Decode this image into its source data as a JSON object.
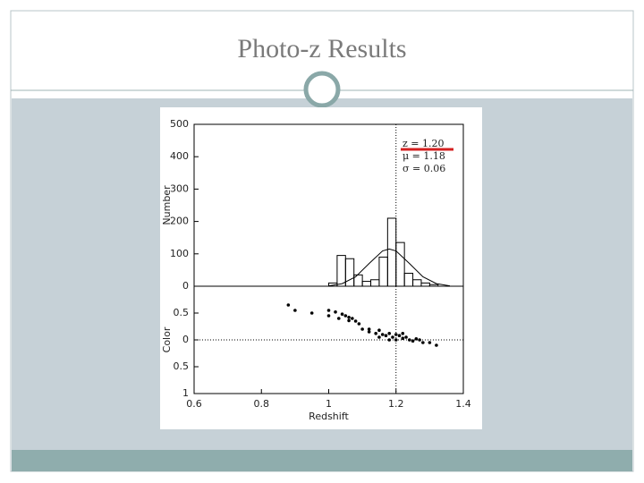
{
  "slide": {
    "title": "Photo-z Results"
  },
  "chart_data": [
    {
      "type": "histogram",
      "ylabel": "Number",
      "annotations": [
        "z = 1.20",
        "μ = 1.18",
        "σ = 0.06"
      ],
      "bins": [
        1.0,
        1.025,
        1.05,
        1.075,
        1.1,
        1.125,
        1.15,
        1.175,
        1.2,
        1.225,
        1.25,
        1.275,
        1.3,
        1.325
      ],
      "values": [
        10,
        95,
        85,
        35,
        15,
        20,
        90,
        210,
        135,
        40,
        20,
        10,
        5
      ],
      "fit": {
        "x": [
          1.0,
          1.04,
          1.08,
          1.12,
          1.16,
          1.18,
          1.2,
          1.24,
          1.28,
          1.32,
          1.36
        ],
        "values": [
          1,
          8,
          29,
          70,
          109,
          115,
          109,
          70,
          29,
          8,
          1
        ]
      },
      "vline": 1.2,
      "color": "#000000",
      "xlim": [
        0.6,
        1.4
      ],
      "ylim": [
        0,
        500
      ],
      "yticks": [
        0,
        100,
        200,
        300,
        400,
        500
      ]
    },
    {
      "type": "scatter",
      "xlabel": "Redshift",
      "ylabel": "Color",
      "x": [
        0.88,
        0.9,
        0.95,
        1.0,
        1.02,
        1.04,
        1.05,
        1.06,
        1.07,
        1.08,
        1.09,
        1.1,
        1.12,
        1.14,
        1.15,
        1.16,
        1.17,
        1.18,
        1.19,
        1.2,
        1.21,
        1.22,
        1.23,
        1.24,
        1.25,
        1.26,
        1.27,
        1.28,
        1.3,
        1.32,
        1.0,
        1.03,
        1.06,
        1.12,
        1.18,
        1.2,
        1.22,
        1.15
      ],
      "values": [
        0.65,
        0.55,
        0.5,
        0.55,
        0.52,
        0.48,
        0.45,
        0.42,
        0.4,
        0.35,
        0.3,
        0.2,
        0.15,
        0.12,
        0.18,
        0.1,
        0.08,
        0.12,
        0.05,
        0.1,
        0.08,
        0.03,
        0.05,
        0.0,
        -0.02,
        0.02,
        0.0,
        -0.05,
        -0.05,
        -0.1,
        0.45,
        0.4,
        0.36,
        0.2,
        0.0,
        0.0,
        0.12,
        0.05
      ],
      "hline": 0,
      "vline": 1.2,
      "color": "#000000",
      "xlim": [
        0.6,
        1.4
      ],
      "ylim": [
        -1,
        1
      ],
      "xticks": [
        0.6,
        0.8,
        1,
        1.2,
        1.4
      ],
      "yticks": [
        0.5,
        0,
        {
          "value": -0.5,
          "label": "0.5"
        },
        {
          "value": -1,
          "label": "1"
        }
      ]
    }
  ]
}
